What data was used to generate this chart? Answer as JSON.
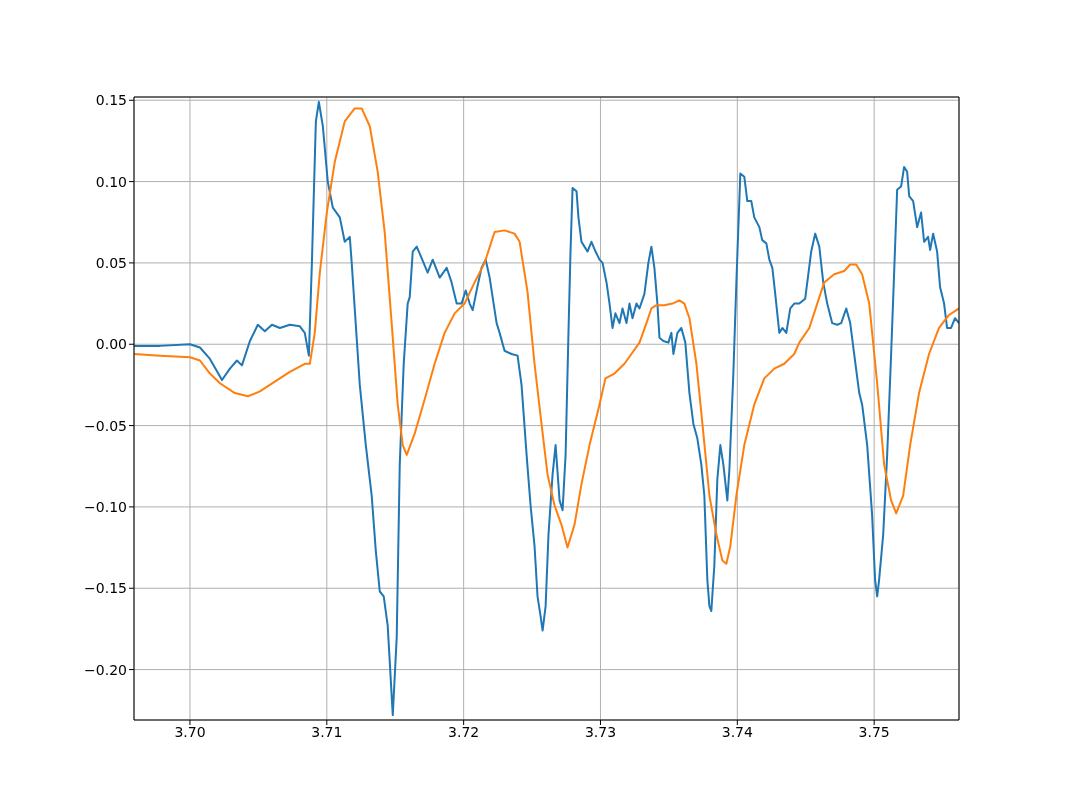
{
  "chart_data": {
    "type": "line",
    "xlim": [
      3.69591,
      3.7562
    ],
    "ylim": [
      -0.231,
      0.152
    ],
    "xticks": [
      {
        "value": 3.7,
        "label": "3.70"
      },
      {
        "value": 3.71,
        "label": "3.71"
      },
      {
        "value": 3.72,
        "label": "3.72"
      },
      {
        "value": 3.73,
        "label": "3.73"
      },
      {
        "value": 3.74,
        "label": "3.74"
      },
      {
        "value": 3.75,
        "label": "3.75"
      }
    ],
    "yticks": [
      {
        "value": -0.2,
        "label": "−0.20"
      },
      {
        "value": -0.15,
        "label": "−0.15"
      },
      {
        "value": -0.1,
        "label": "−0.10"
      },
      {
        "value": -0.05,
        "label": "−0.05"
      },
      {
        "value": 0,
        "label": "0.00"
      },
      {
        "value": 0.05,
        "label": "0.05"
      },
      {
        "value": 0.1,
        "label": "0.10"
      },
      {
        "value": 0.15,
        "label": "0.15"
      }
    ],
    "grid": true,
    "marker": "none",
    "line_style": "solid",
    "series": [
      {
        "color": "#1f77b4",
        "x": [
          3.69591,
          3.69781,
          3.7,
          3.70073,
          3.70146,
          3.70234,
          3.70292,
          3.70343,
          3.7038,
          3.70438,
          3.70496,
          3.70547,
          3.70599,
          3.70657,
          3.7073,
          3.70803,
          3.70839,
          3.70869,
          3.70891,
          3.7092,
          3.70942,
          3.70971,
          3.71007,
          3.71044,
          3.71095,
          3.71131,
          3.71168,
          3.71182,
          3.71241,
          3.71285,
          3.71328,
          3.71358,
          3.71387,
          3.71416,
          3.71445,
          3.71482,
          3.71511,
          3.71533,
          3.71562,
          3.71591,
          3.71606,
          3.71628,
          3.71657,
          3.71693,
          3.71737,
          3.71774,
          3.71825,
          3.71876,
          3.71912,
          3.71949,
          3.71985,
          3.72015,
          3.72044,
          3.72066,
          3.72102,
          3.72131,
          3.72161,
          3.7219,
          3.72219,
          3.72241,
          3.72263,
          3.72299,
          3.7235,
          3.72394,
          3.72423,
          3.7246,
          3.72489,
          3.72518,
          3.7254,
          3.72562,
          3.72577,
          3.72599,
          3.7262,
          3.7265,
          3.72672,
          3.72701,
          3.72723,
          3.72745,
          3.72766,
          3.72781,
          3.72796,
          3.72825,
          3.72839,
          3.72861,
          3.72883,
          3.72905,
          3.72934,
          3.72964,
          3.72993,
          3.73015,
          3.73044,
          3.73066,
          3.73088,
          3.73109,
          3.73139,
          3.73161,
          3.7319,
          3.73212,
          3.73234,
          3.73263,
          3.73285,
          3.73321,
          3.7335,
          3.73372,
          3.73394,
          3.73416,
          3.73431,
          3.7346,
          3.73496,
          3.73518,
          3.73533,
          3.73562,
          3.73591,
          3.7362,
          3.7365,
          3.73679,
          3.73708,
          3.73737,
          3.73759,
          3.73781,
          3.73796,
          3.7381,
          3.73832,
          3.73854,
          3.73876,
          3.73898,
          3.73927,
          3.73942,
          3.73971,
          3.73993,
          3.74022,
          3.74051,
          3.74073,
          3.74102,
          3.74124,
          3.74161,
          3.74182,
          3.74212,
          3.74234,
          3.74256,
          3.74277,
          3.74307,
          3.74329,
          3.74358,
          3.74387,
          3.74416,
          3.74453,
          3.74496,
          3.7454,
          3.74569,
          3.74599,
          3.74628,
          3.74657,
          3.74693,
          3.7473,
          3.74759,
          3.74796,
          3.74825,
          3.74854,
          3.74891,
          3.74912,
          3.74949,
          3.74985,
          3.75007,
          3.75022,
          3.75036,
          3.75066,
          3.75095,
          3.75124,
          3.75146,
          3.75168,
          3.75197,
          3.75219,
          3.75241,
          3.75256,
          3.75285,
          3.75314,
          3.75343,
          3.75365,
          3.75394,
          3.75409,
          3.75431,
          3.7546,
          3.75482,
          3.75511,
          3.75533,
          3.75562,
          3.75591,
          3.7562
        ],
        "values": [
          -0.001,
          -0.001,
          0,
          -0.002,
          -0.009,
          -0.022,
          -0.015,
          -0.01,
          -0.013,
          0.002,
          0.012,
          0.008,
          0.012,
          0.01,
          0.012,
          0.011,
          0.007,
          -0.007,
          0.05,
          0.137,
          0.149,
          0.134,
          0.1,
          0.084,
          0.078,
          0.063,
          0.066,
          0.05,
          -0.025,
          -0.062,
          -0.093,
          -0.127,
          -0.152,
          -0.155,
          -0.173,
          -0.228,
          -0.18,
          -0.074,
          -0.012,
          0.025,
          0.029,
          0.057,
          0.06,
          0.053,
          0.044,
          0.052,
          0.041,
          0.047,
          0.038,
          0.025,
          0.025,
          0.033,
          0.025,
          0.021,
          0.036,
          0.047,
          0.052,
          0.041,
          0.025,
          0.013,
          0.007,
          -0.004,
          -0.006,
          -0.007,
          -0.025,
          -0.068,
          -0.099,
          -0.124,
          -0.155,
          -0.167,
          -0.176,
          -0.161,
          -0.117,
          -0.08,
          -0.062,
          -0.096,
          -0.102,
          -0.068,
          0.007,
          0.057,
          0.096,
          0.094,
          0.078,
          0.063,
          0.06,
          0.057,
          0.063,
          0.057,
          0.052,
          0.05,
          0.038,
          0.025,
          0.01,
          0.019,
          0.013,
          0.022,
          0.013,
          0.025,
          0.016,
          0.025,
          0.022,
          0.031,
          0.05,
          0.06,
          0.047,
          0.025,
          0.004,
          0.002,
          0.001,
          0.007,
          -0.006,
          0.007,
          0.01,
          0.001,
          -0.03,
          -0.049,
          -0.058,
          -0.074,
          -0.093,
          -0.145,
          -0.161,
          -0.164,
          -0.136,
          -0.083,
          -0.062,
          -0.074,
          -0.096,
          -0.077,
          -0.018,
          0.038,
          0.105,
          0.103,
          0.088,
          0.088,
          0.078,
          0.072,
          0.064,
          0.062,
          0.052,
          0.047,
          0.031,
          0.007,
          0.01,
          0.007,
          0.022,
          0.025,
          0.025,
          0.028,
          0.057,
          0.068,
          0.06,
          0.038,
          0.025,
          0.013,
          0.012,
          0.013,
          0.022,
          0.013,
          -0.006,
          -0.03,
          -0.037,
          -0.062,
          -0.105,
          -0.145,
          -0.155,
          -0.145,
          -0.117,
          -0.068,
          -0.006,
          0.044,
          0.095,
          0.097,
          0.109,
          0.106,
          0.091,
          0.088,
          0.072,
          0.081,
          0.063,
          0.066,
          0.058,
          0.068,
          0.057,
          0.035,
          0.025,
          0.01,
          0.01,
          0.016,
          0.013
        ]
      },
      {
        "color": "#ff7f0e",
        "x": [
          3.69591,
          3.69781,
          3.7,
          3.70073,
          3.70146,
          3.70219,
          3.70328,
          3.70423,
          3.70511,
          3.7062,
          3.7073,
          3.70839,
          3.70876,
          3.70912,
          3.70949,
          3.71,
          3.71058,
          3.71131,
          3.71204,
          3.71255,
          3.71314,
          3.71372,
          3.71423,
          3.71474,
          3.71518,
          3.71555,
          3.71584,
          3.71642,
          3.71715,
          3.71788,
          3.71861,
          3.71934,
          3.72007,
          3.7208,
          3.72153,
          3.72226,
          3.72299,
          3.72372,
          3.72409,
          3.72467,
          3.72518,
          3.72569,
          3.72613,
          3.72664,
          3.72715,
          3.72759,
          3.7281,
          3.72861,
          3.7292,
          3.72993,
          3.73036,
          3.73102,
          3.73175,
          3.73226,
          3.73285,
          3.73336,
          3.73372,
          3.73409,
          3.73467,
          3.73526,
          3.73577,
          3.73613,
          3.7365,
          3.73701,
          3.73745,
          3.73796,
          3.73847,
          3.73891,
          3.7392,
          3.73949,
          3.73993,
          3.74051,
          3.74124,
          3.74197,
          3.7427,
          3.74343,
          3.74416,
          3.74453,
          3.74526,
          3.74584,
          3.74635,
          3.74708,
          3.74781,
          3.74825,
          3.74869,
          3.74912,
          3.74964,
          3.75022,
          3.75073,
          3.75124,
          3.75161,
          3.75212,
          3.75263,
          3.75328,
          3.75401,
          3.75474,
          3.75547,
          3.7562
        ],
        "values": [
          -0.006,
          -0.007,
          -0.008,
          -0.01,
          -0.018,
          -0.024,
          -0.03,
          -0.032,
          -0.029,
          -0.023,
          -0.017,
          -0.012,
          -0.012,
          0.007,
          0.044,
          0.081,
          0.112,
          0.137,
          0.145,
          0.145,
          0.134,
          0.106,
          0.069,
          0.013,
          -0.037,
          -0.062,
          -0.068,
          -0.055,
          -0.034,
          -0.012,
          0.007,
          0.019,
          0.025,
          0.038,
          0.05,
          0.069,
          0.07,
          0.068,
          0.063,
          0.032,
          -0.012,
          -0.049,
          -0.08,
          -0.099,
          -0.111,
          -0.125,
          -0.111,
          -0.086,
          -0.062,
          -0.037,
          -0.021,
          -0.018,
          -0.012,
          -0.006,
          0.001,
          0.013,
          0.022,
          0.024,
          0.024,
          0.025,
          0.027,
          0.025,
          0.016,
          -0.012,
          -0.049,
          -0.093,
          -0.117,
          -0.133,
          -0.135,
          -0.124,
          -0.093,
          -0.062,
          -0.037,
          -0.021,
          -0.015,
          -0.012,
          -0.006,
          0.001,
          0.01,
          0.025,
          0.038,
          0.043,
          0.045,
          0.049,
          0.049,
          0.043,
          0.025,
          -0.024,
          -0.074,
          -0.096,
          -0.104,
          -0.093,
          -0.062,
          -0.03,
          -0.006,
          0.01,
          0.018,
          0.022
        ]
      }
    ]
  }
}
